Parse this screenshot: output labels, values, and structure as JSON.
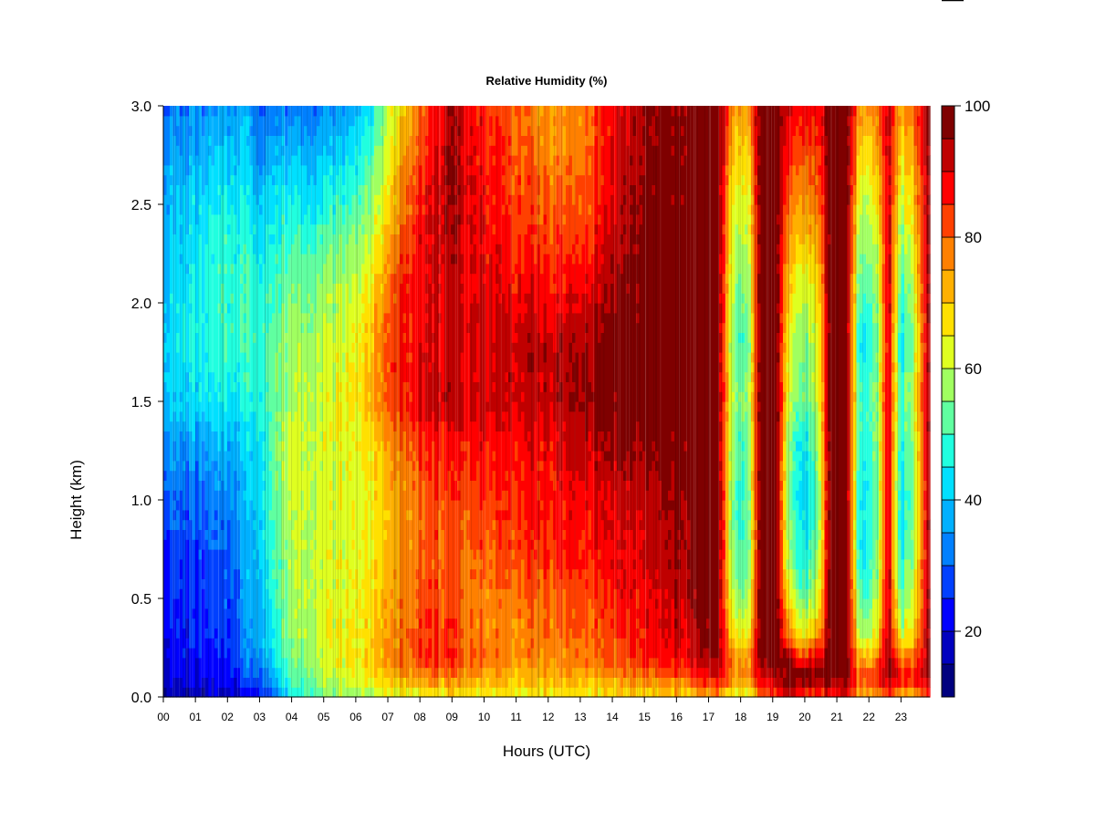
{
  "chart_data": {
    "type": "heatmap",
    "title": "Relative Humidity (%)",
    "xlabel": "Hours (UTC)",
    "ylabel": "Height (km)",
    "xlim": [
      0,
      23.9
    ],
    "ylim": [
      0.0,
      3.0
    ],
    "x_ticks": [
      0,
      1,
      2,
      3,
      4,
      5,
      6,
      7,
      8,
      9,
      10,
      11,
      12,
      13,
      14,
      15,
      16,
      17,
      18,
      19,
      20,
      21,
      22,
      23
    ],
    "x_tick_labels": [
      "00",
      "01",
      "02",
      "03",
      "04",
      "05",
      "06",
      "07",
      "08",
      "09",
      "10",
      "11",
      "12",
      "13",
      "14",
      "15",
      "16",
      "17",
      "18",
      "19",
      "20",
      "21",
      "22",
      "23"
    ],
    "y_ticks": [
      0.0,
      0.5,
      1.0,
      1.5,
      2.0,
      2.5,
      3.0
    ],
    "y_tick_labels": [
      "0.0",
      "0.5",
      "1.0",
      "1.5",
      "2.0",
      "2.5",
      "3.0"
    ],
    "z_range": [
      10,
      100
    ],
    "colorbar": {
      "levels": [
        10,
        15,
        20,
        25,
        30,
        35,
        40,
        45,
        50,
        55,
        60,
        65,
        70,
        75,
        80,
        85,
        90,
        95,
        100
      ],
      "colors": [
        "#00007F",
        "#0000BF",
        "#0000FF",
        "#0040FF",
        "#0080FF",
        "#00B0FF",
        "#00E0FF",
        "#20FFDF",
        "#60FFA0",
        "#A0FF60",
        "#DFFF20",
        "#FFE000",
        "#FFB000",
        "#FF8000",
        "#FF4000",
        "#FF0000",
        "#BF0000",
        "#7F0000"
      ],
      "tick_values": [
        20,
        40,
        60,
        80,
        100
      ],
      "tick_labels": [
        "20",
        "40",
        "60",
        "80",
        "100"
      ]
    },
    "heights": [
      0.0,
      0.1,
      0.2,
      0.3,
      0.5,
      0.7,
      1.0,
      1.3,
      1.5,
      1.8,
      2.1,
      2.5,
      3.0
    ],
    "profiles": [
      {
        "hour": 0.0,
        "rh": [
          15,
          20,
          22,
          23,
          25,
          25,
          30,
          36,
          40,
          42,
          40,
          38,
          32
        ]
      },
      {
        "hour": 1.0,
        "rh": [
          15,
          20,
          22,
          23,
          25,
          26,
          30,
          36,
          42,
          45,
          44,
          42,
          32
        ]
      },
      {
        "hour": 2.0,
        "rh": [
          17,
          22,
          24,
          25,
          27,
          28,
          32,
          38,
          44,
          48,
          48,
          45,
          35
        ]
      },
      {
        "hour": 2.5,
        "rh": [
          20,
          28,
          32,
          33,
          35,
          36,
          38,
          42,
          46,
          50,
          50,
          46,
          38
        ]
      },
      {
        "hour": 3.0,
        "rh": [
          25,
          32,
          36,
          38,
          40,
          42,
          44,
          45,
          48,
          50,
          48,
          42,
          30
        ]
      },
      {
        "hour": 3.5,
        "rh": [
          30,
          40,
          44,
          46,
          48,
          50,
          52,
          54,
          54,
          54,
          50,
          44,
          32
        ]
      },
      {
        "hour": 4.0,
        "rh": [
          45,
          52,
          55,
          57,
          58,
          60,
          62,
          62,
          60,
          58,
          54,
          46,
          33
        ]
      },
      {
        "hour": 5.0,
        "rh": [
          55,
          58,
          62,
          62,
          62,
          62,
          62,
          62,
          62,
          60,
          56,
          46,
          33
        ]
      },
      {
        "hour": 6.0,
        "rh": [
          58,
          62,
          66,
          66,
          64,
          64,
          63,
          64,
          66,
          64,
          60,
          50,
          38
        ]
      },
      {
        "hour": 6.5,
        "rh": [
          60,
          66,
          70,
          70,
          68,
          66,
          66,
          68,
          74,
          72,
          68,
          58,
          45
        ]
      },
      {
        "hour": 7.0,
        "rh": [
          62,
          70,
          74,
          74,
          72,
          70,
          70,
          74,
          80,
          80,
          76,
          66,
          58
        ]
      },
      {
        "hour": 7.5,
        "rh": [
          64,
          74,
          80,
          80,
          78,
          76,
          76,
          80,
          86,
          88,
          86,
          80,
          70
        ]
      },
      {
        "hour": 8.0,
        "rh": [
          66,
          78,
          86,
          86,
          84,
          82,
          82,
          86,
          92,
          90,
          90,
          88,
          80
        ]
      },
      {
        "hour": 9.0,
        "rh": [
          64,
          76,
          84,
          82,
          80,
          80,
          82,
          86,
          92,
          90,
          90,
          94,
          93
        ]
      },
      {
        "hour": 10.0,
        "rh": [
          64,
          74,
          80,
          78,
          78,
          80,
          84,
          88,
          92,
          92,
          90,
          88,
          86
        ]
      },
      {
        "hour": 11.0,
        "rh": [
          64,
          72,
          76,
          76,
          78,
          82,
          86,
          88,
          92,
          92,
          88,
          84,
          80
        ]
      },
      {
        "hour": 12.0,
        "rh": [
          64,
          72,
          76,
          78,
          80,
          84,
          86,
          88,
          92,
          92,
          86,
          80,
          74
        ]
      },
      {
        "hour": 13.0,
        "rh": [
          64,
          74,
          78,
          80,
          82,
          86,
          88,
          92,
          96,
          94,
          88,
          80,
          76
        ]
      },
      {
        "hour": 14.0,
        "rh": [
          66,
          76,
          80,
          82,
          86,
          88,
          90,
          96,
          99,
          98,
          94,
          90,
          88
        ]
      },
      {
        "hour": 15.0,
        "rh": [
          66,
          78,
          84,
          86,
          88,
          90,
          92,
          96,
          99,
          98,
          98,
          96,
          94
        ]
      },
      {
        "hour": 16.0,
        "rh": [
          68,
          80,
          88,
          90,
          92,
          94,
          96,
          98,
          99,
          99,
          99,
          98,
          96
        ]
      },
      {
        "hour": 16.6,
        "rh": [
          70,
          84,
          92,
          94,
          96,
          98,
          99,
          99,
          100,
          100,
          100,
          100,
          99
        ]
      },
      {
        "hour": 17.3,
        "rh": [
          74,
          88,
          96,
          98,
          99,
          100,
          100,
          100,
          100,
          100,
          100,
          100,
          100
        ]
      },
      {
        "hour": 17.7,
        "rh": [
          62,
          78,
          78,
          70,
          62,
          58,
          58,
          58,
          62,
          58,
          62,
          66,
          78
        ]
      },
      {
        "hour": 18.0,
        "rh": [
          60,
          76,
          72,
          62,
          52,
          48,
          44,
          48,
          52,
          46,
          52,
          60,
          72
        ]
      },
      {
        "hour": 18.3,
        "rh": [
          62,
          78,
          78,
          70,
          62,
          58,
          58,
          58,
          62,
          58,
          62,
          66,
          78
        ]
      },
      {
        "hour": 18.6,
        "rh": [
          80,
          92,
          98,
          100,
          100,
          100,
          100,
          100,
          100,
          100,
          100,
          100,
          100
        ]
      },
      {
        "hour": 19.1,
        "rh": [
          80,
          92,
          98,
          100,
          100,
          100,
          100,
          100,
          100,
          100,
          100,
          100,
          100
        ]
      },
      {
        "hour": 19.5,
        "rh": [
          92,
          100,
          96,
          80,
          66,
          58,
          54,
          56,
          62,
          64,
          70,
          80,
          90
        ]
      },
      {
        "hour": 20.0,
        "rh": [
          80,
          98,
          84,
          66,
          52,
          44,
          40,
          44,
          52,
          54,
          62,
          74,
          88
        ]
      },
      {
        "hour": 20.4,
        "rh": [
          82,
          98,
          90,
          74,
          62,
          56,
          52,
          56,
          62,
          62,
          68,
          78,
          88
        ]
      },
      {
        "hour": 20.8,
        "rh": [
          86,
          98,
          100,
          100,
          100,
          100,
          100,
          100,
          100,
          100,
          100,
          100,
          100
        ]
      },
      {
        "hour": 21.3,
        "rh": [
          86,
          98,
          100,
          100,
          100,
          100,
          100,
          100,
          100,
          100,
          100,
          100,
          100
        ]
      },
      {
        "hour": 21.7,
        "rh": [
          72,
          84,
          72,
          62,
          52,
          46,
          46,
          48,
          50,
          46,
          52,
          62,
          76
        ]
      },
      {
        "hour": 22.0,
        "rh": [
          70,
          82,
          68,
          58,
          48,
          44,
          42,
          46,
          48,
          42,
          48,
          58,
          72
        ]
      },
      {
        "hour": 22.3,
        "rh": [
          74,
          86,
          80,
          70,
          62,
          58,
          56,
          58,
          60,
          56,
          60,
          68,
          80
        ]
      },
      {
        "hour": 22.6,
        "rh": [
          86,
          96,
          98,
          96,
          94,
          94,
          94,
          94,
          94,
          94,
          94,
          94,
          94
        ]
      },
      {
        "hour": 23.0,
        "rh": [
          70,
          90,
          76,
          62,
          52,
          46,
          42,
          46,
          50,
          44,
          50,
          60,
          74
        ]
      },
      {
        "hour": 23.4,
        "rh": [
          72,
          88,
          80,
          70,
          62,
          58,
          56,
          58,
          62,
          58,
          62,
          70,
          80
        ]
      },
      {
        "hour": 23.9,
        "rh": [
          86,
          96,
          98,
          98,
          98,
          98,
          98,
          98,
          98,
          98,
          98,
          98,
          98
        ]
      }
    ]
  }
}
